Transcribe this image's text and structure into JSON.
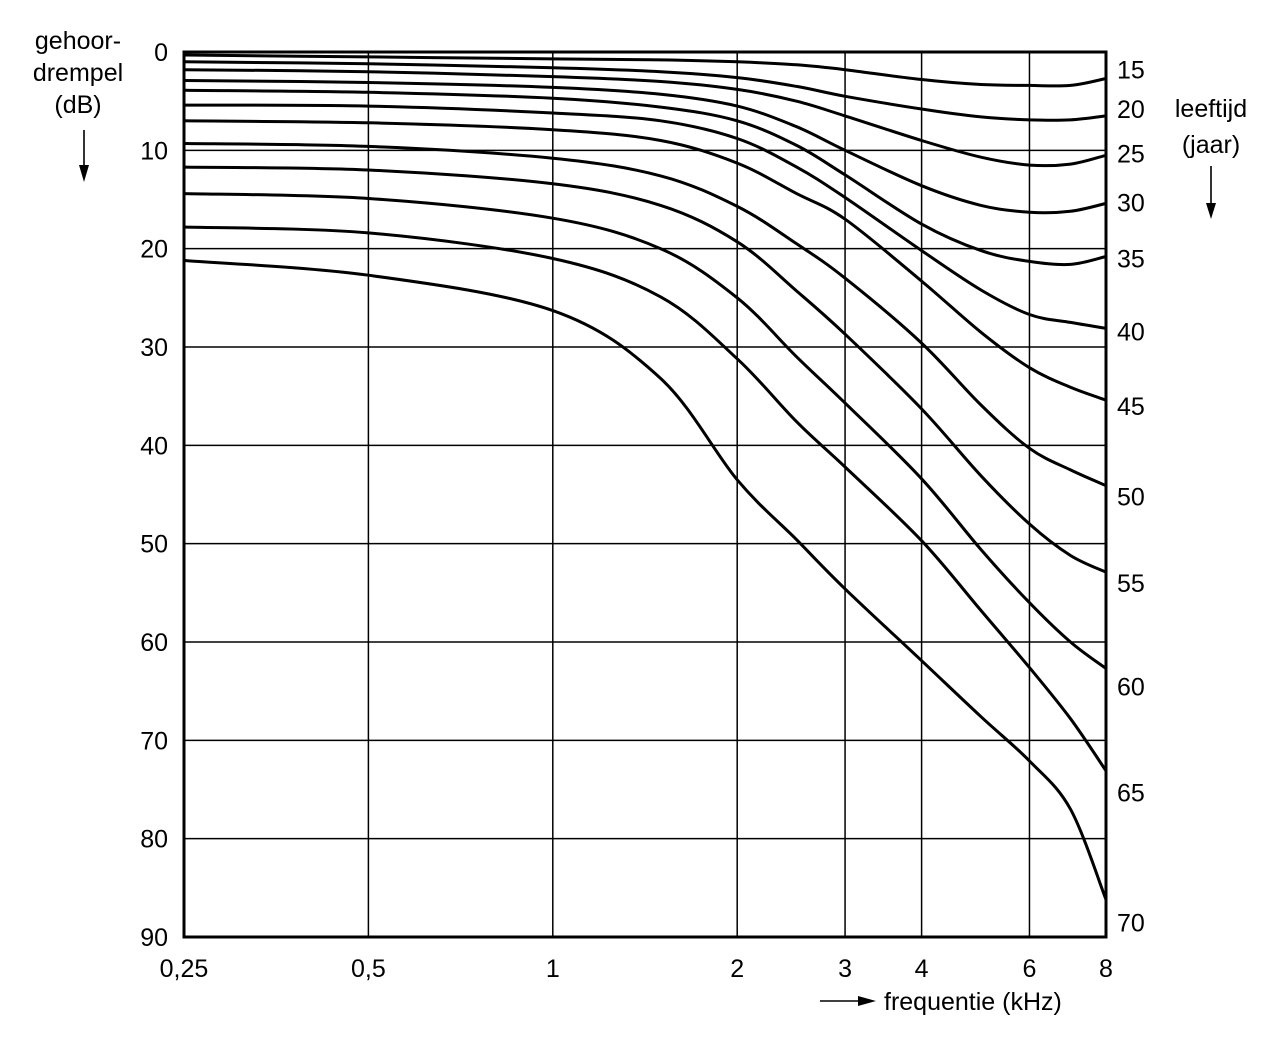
{
  "chart_data": {
    "type": "line",
    "title": "",
    "ylabel": [
      "gehoor-",
      "drempel",
      "(dB)"
    ],
    "xlabel": "frequentie (kHz)",
    "legend_title": [
      "leeftijd",
      "(jaar)"
    ],
    "x_scale": "log",
    "y_inverted": true,
    "xlim": [
      0.25,
      8
    ],
    "ylim": [
      0,
      90
    ],
    "grid": true,
    "x_ticks": [
      0.25,
      0.5,
      1,
      2,
      3,
      4,
      6,
      8
    ],
    "x_tick_labels": [
      "0,25",
      "0,5",
      "1",
      "2",
      "3",
      "4",
      "6",
      "8"
    ],
    "y_ticks": [
      0,
      10,
      20,
      30,
      40,
      50,
      60,
      70,
      80,
      90
    ],
    "y_tick_labels": [
      "0",
      "10",
      "20",
      "30",
      "40",
      "50",
      "60",
      "70",
      "80",
      "90"
    ],
    "x": [
      0.25,
      0.5,
      1,
      1.5,
      2,
      2.5,
      3,
      4,
      5,
      6,
      7,
      8
    ],
    "series": [
      {
        "label": "15",
        "label_y": 1.8,
        "values": [
          0.3,
          0.5,
          0.7,
          0.8,
          1.0,
          1.3,
          1.8,
          2.8,
          3.3,
          3.4,
          3.4,
          2.7
        ]
      },
      {
        "label": "20",
        "label_y": 5.8,
        "values": [
          1.0,
          1.2,
          1.6,
          2.0,
          2.6,
          3.5,
          4.5,
          5.8,
          6.6,
          6.9,
          6.9,
          6.5
        ]
      },
      {
        "label": "25",
        "label_y": 10.3,
        "values": [
          1.8,
          2.0,
          2.5,
          3.0,
          3.8,
          5.0,
          6.5,
          9.0,
          10.7,
          11.5,
          11.4,
          10.5
        ]
      },
      {
        "label": "30",
        "label_y": 15.3,
        "values": [
          2.9,
          3.1,
          3.6,
          4.3,
          5.5,
          7.6,
          10.0,
          13.6,
          15.6,
          16.3,
          16.2,
          15.4
        ]
      },
      {
        "label": "35",
        "label_y": 21.0,
        "values": [
          3.9,
          4.1,
          4.7,
          5.6,
          7.0,
          9.5,
          12.5,
          17.5,
          20.2,
          21.3,
          21.6,
          20.8
        ]
      },
      {
        "label": "40",
        "label_y": 28.4,
        "values": [
          5.4,
          5.5,
          6.2,
          7.0,
          8.8,
          11.7,
          14.8,
          20.2,
          24.2,
          26.7,
          27.5,
          28.1
        ]
      },
      {
        "label": "45",
        "label_y": 36.0,
        "values": [
          7.0,
          7.2,
          7.9,
          9.0,
          11.3,
          14.4,
          17.0,
          23.3,
          28.5,
          32.1,
          34.1,
          35.4
        ]
      },
      {
        "label": "50",
        "label_y": 45.2,
        "values": [
          9.3,
          9.6,
          10.8,
          12.6,
          15.7,
          19.5,
          23.0,
          29.6,
          35.9,
          40.3,
          42.5,
          44.1
        ]
      },
      {
        "label": "55",
        "label_y": 54.0,
        "values": [
          11.7,
          12.0,
          13.4,
          15.6,
          19.3,
          24.3,
          28.7,
          36.3,
          43.1,
          48.0,
          51.2,
          52.9
        ]
      },
      {
        "label": "60",
        "label_y": 64.5,
        "values": [
          14.4,
          14.9,
          16.9,
          20.0,
          25.0,
          31.0,
          35.7,
          43.4,
          50.6,
          56.0,
          60.0,
          62.7
        ]
      },
      {
        "label": "65",
        "label_y": 75.3,
        "values": [
          17.8,
          18.4,
          21.0,
          24.9,
          31.2,
          37.6,
          42.2,
          49.7,
          56.8,
          62.6,
          67.8,
          73.1
        ]
      },
      {
        "label": "70",
        "label_y": 88.5,
        "values": [
          21.2,
          22.7,
          26.3,
          33.2,
          43.5,
          49.6,
          54.6,
          61.9,
          67.6,
          72.1,
          77.0,
          86.2
        ]
      }
    ]
  }
}
